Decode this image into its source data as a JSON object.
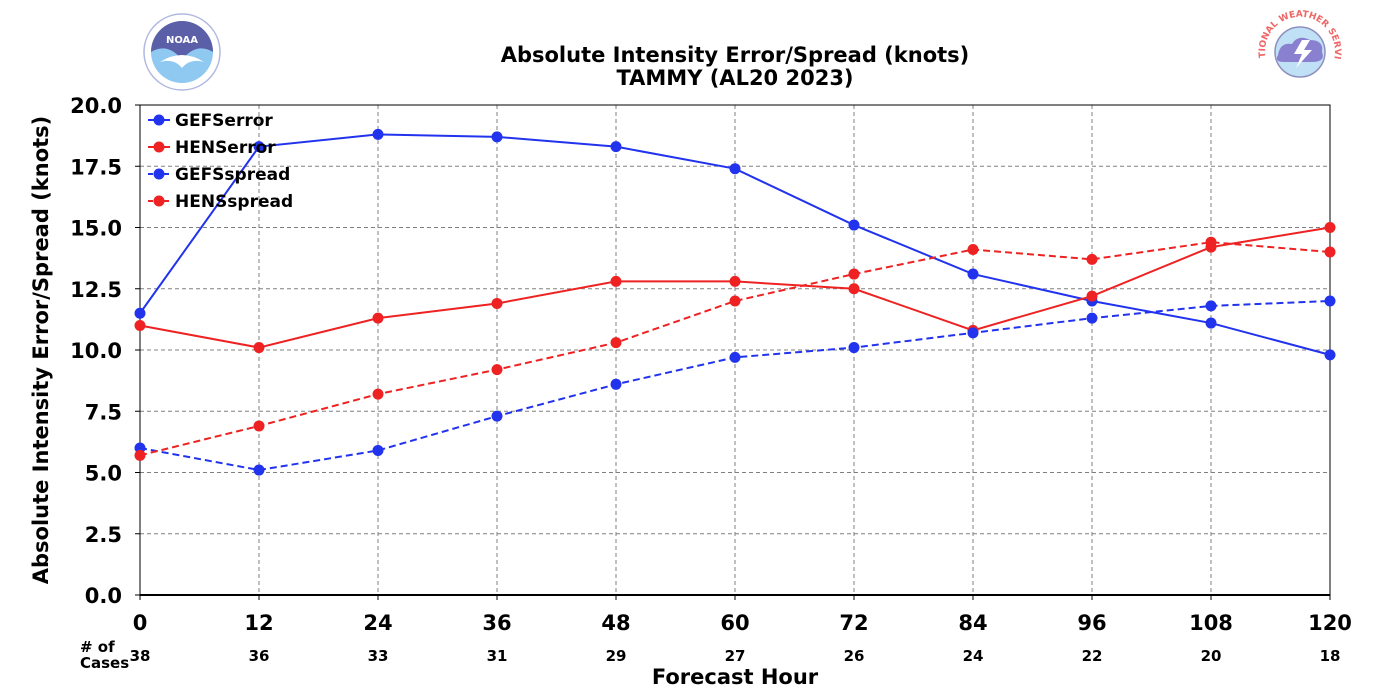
{
  "chart_data": {
    "type": "line",
    "title": "Absolute Intensity Error/Spread (knots)",
    "subtitle": "TAMMY (AL20 2023)",
    "xlabel": "Forecast Hour",
    "ylabel": "Absolute Intensity Error/Spread (knots)",
    "x": [
      0,
      12,
      24,
      36,
      48,
      60,
      72,
      84,
      96,
      108,
      120
    ],
    "xlim": [
      0,
      120
    ],
    "ylim": [
      0,
      20
    ],
    "yticks": [
      "0.0",
      "2.5",
      "5.0",
      "7.5",
      "10.0",
      "12.5",
      "15.0",
      "17.5",
      "20.0"
    ],
    "grid": true,
    "legend_position": "top-left",
    "cases_label": "# of\nCases",
    "cases_label_lines": [
      "# of",
      "Cases"
    ],
    "cases": [
      "38",
      "36",
      "33",
      "31",
      "29",
      "27",
      "26",
      "24",
      "22",
      "20",
      "18"
    ],
    "series": [
      {
        "name": "GEFSerror",
        "color": "#2233ee",
        "dashed": false,
        "values": [
          11.5,
          18.3,
          18.8,
          18.7,
          18.3,
          17.4,
          15.1,
          13.1,
          12.0,
          11.1,
          9.8
        ]
      },
      {
        "name": "HENSerror",
        "color": "#ee2222",
        "dashed": false,
        "values": [
          11.0,
          10.1,
          11.3,
          11.9,
          12.8,
          12.8,
          12.5,
          10.8,
          12.2,
          14.2,
          15.0
        ]
      },
      {
        "name": "GEFSspread",
        "color": "#2233ee",
        "dashed": true,
        "values": [
          6.0,
          5.1,
          5.9,
          7.3,
          8.6,
          9.7,
          10.1,
          10.7,
          11.3,
          11.8,
          12.0
        ]
      },
      {
        "name": "HENSspread",
        "color": "#ee2222",
        "dashed": true,
        "values": [
          5.7,
          6.9,
          8.2,
          9.2,
          10.3,
          12.0,
          13.1,
          14.1,
          13.7,
          14.4,
          14.0
        ]
      }
    ]
  },
  "logos": {
    "left": {
      "icon": "noaa-logo",
      "text": "NOAA",
      "color": "#6a8fd8"
    },
    "right": {
      "icon": "nws-logo",
      "text": "NATIONAL WEATHER SERVICE",
      "color": "#ee6666"
    }
  }
}
